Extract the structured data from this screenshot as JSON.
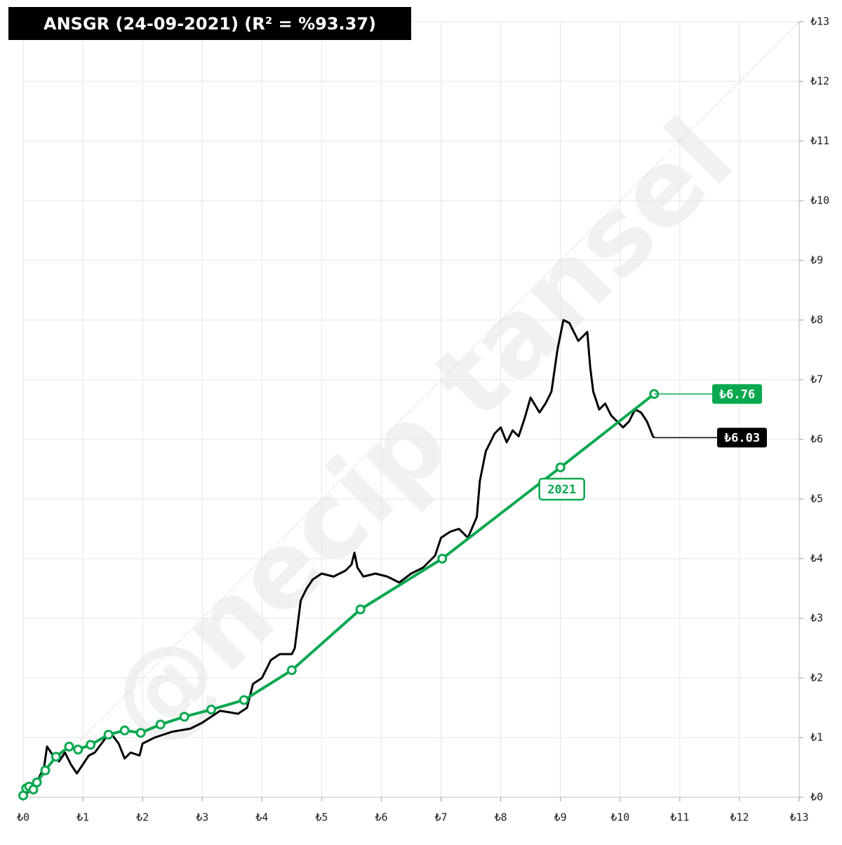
{
  "chart_data": {
    "type": "line",
    "title": "ANSGR (24-09-2021) (R² = %93.37)",
    "watermark": "@necip tansel",
    "xlim": [
      0,
      13
    ],
    "ylim": [
      0,
      13
    ],
    "xticks": [
      {
        "value": 0,
        "label": "₺0"
      },
      {
        "value": 1,
        "label": "₺1"
      },
      {
        "value": 2,
        "label": "₺2"
      },
      {
        "value": 3,
        "label": "₺3"
      },
      {
        "value": 4,
        "label": "₺4"
      },
      {
        "value": 5,
        "label": "₺5"
      },
      {
        "value": 6,
        "label": "₺6"
      },
      {
        "value": 7,
        "label": "₺7"
      },
      {
        "value": 8,
        "label": "₺8"
      },
      {
        "value": 9,
        "label": "₺9"
      },
      {
        "value": 10,
        "label": "₺10"
      },
      {
        "value": 11,
        "label": "₺11"
      },
      {
        "value": 12,
        "label": "₺12"
      },
      {
        "value": 13,
        "label": "₺13"
      }
    ],
    "yticks": [
      {
        "value": 0,
        "label": "₺0"
      },
      {
        "value": 1,
        "label": "₺1"
      },
      {
        "value": 2,
        "label": "₺2"
      },
      {
        "value": 3,
        "label": "₺3"
      },
      {
        "value": 4,
        "label": "₺4"
      },
      {
        "value": 5,
        "label": "₺5"
      },
      {
        "value": 6,
        "label": "₺6"
      },
      {
        "value": 7,
        "label": "₺7"
      },
      {
        "value": 8,
        "label": "₺8"
      },
      {
        "value": 9,
        "label": "₺9"
      },
      {
        "value": 10,
        "label": "₺10"
      },
      {
        "value": 11,
        "label": "₺11"
      },
      {
        "value": 12,
        "label": "₺12"
      },
      {
        "value": 13,
        "label": "₺13"
      }
    ],
    "grid": true,
    "diagonal": true,
    "series": [
      {
        "color": "#000000",
        "markers": false,
        "x": [
          0,
          0.2,
          0.35,
          0.4,
          0.5,
          0.6,
          0.7,
          0.8,
          0.9,
          1.0,
          1.1,
          1.2,
          1.35,
          1.45,
          1.6,
          1.7,
          1.8,
          1.95,
          2.0,
          2.2,
          2.5,
          2.8,
          3.0,
          3.3,
          3.6,
          3.75,
          3.85,
          4.0,
          4.15,
          4.3,
          4.5,
          4.55,
          4.65,
          4.75,
          4.85,
          5.0,
          5.2,
          5.4,
          5.5,
          5.55,
          5.6,
          5.7,
          5.9,
          6.1,
          6.3,
          6.5,
          6.7,
          6.9,
          7.0,
          7.15,
          7.3,
          7.45,
          7.6,
          7.65,
          7.75,
          7.9,
          8.0,
          8.1,
          8.2,
          8.3,
          8.4,
          8.5,
          8.65,
          8.75,
          8.85,
          8.95,
          9.05,
          9.15,
          9.3,
          9.45,
          9.5,
          9.55,
          9.65,
          9.75,
          9.85,
          9.95,
          10.05,
          10.15,
          10.25,
          10.35,
          10.45,
          10.55,
          10.57
        ],
        "values": [
          0,
          0.2,
          0.5,
          0.85,
          0.7,
          0.6,
          0.75,
          0.55,
          0.4,
          0.55,
          0.7,
          0.75,
          0.95,
          1.1,
          0.9,
          0.65,
          0.75,
          0.7,
          0.9,
          1.0,
          1.1,
          1.15,
          1.25,
          1.45,
          1.4,
          1.5,
          1.9,
          2.0,
          2.3,
          2.4,
          2.4,
          2.5,
          3.3,
          3.5,
          3.65,
          3.75,
          3.7,
          3.8,
          3.9,
          4.1,
          3.85,
          3.7,
          3.75,
          3.7,
          3.6,
          3.75,
          3.85,
          4.05,
          4.35,
          4.45,
          4.5,
          4.35,
          4.7,
          5.3,
          5.8,
          6.1,
          6.2,
          5.95,
          6.15,
          6.05,
          6.35,
          6.7,
          6.45,
          6.6,
          6.8,
          7.5,
          8.0,
          7.95,
          7.65,
          7.8,
          7.2,
          6.8,
          6.5,
          6.6,
          6.4,
          6.3,
          6.2,
          6.3,
          6.5,
          6.45,
          6.3,
          6.05,
          6.03
        ],
        "value_labels": [
          null,
          null,
          null,
          null,
          null,
          null,
          null,
          null,
          null,
          null,
          null,
          null,
          null,
          null,
          null,
          null,
          null,
          null,
          null,
          null,
          null,
          null,
          null,
          null,
          null,
          null,
          null,
          null,
          null,
          null,
          null,
          null,
          null,
          null,
          null,
          null,
          null,
          null,
          null,
          null,
          null,
          null,
          null,
          null,
          null,
          null,
          null,
          null,
          null,
          null,
          null,
          null,
          null,
          null,
          null,
          null,
          null,
          null,
          null,
          null,
          null,
          null,
          null,
          null,
          null,
          null,
          null,
          null,
          null,
          null,
          null,
          null,
          null,
          null,
          null,
          null,
          null,
          null,
          null,
          null,
          null,
          null,
          "₺6.03"
        ]
      },
      {
        "color": "#0aa84f",
        "markers": true,
        "x": [
          0,
          0.05,
          0.1,
          0.17,
          0.23,
          0.37,
          0.55,
          0.77,
          0.92,
          1.13,
          1.43,
          1.7,
          1.97,
          2.3,
          2.7,
          3.15,
          3.7,
          4.5,
          5.65,
          7.02,
          9.0,
          10.57
        ],
        "values": [
          0.03,
          0.15,
          0.18,
          0.13,
          0.25,
          0.45,
          0.68,
          0.85,
          0.8,
          0.88,
          1.05,
          1.12,
          1.08,
          1.22,
          1.35,
          1.47,
          1.63,
          2.13,
          3.15,
          4.0,
          5.53,
          6.76
        ],
        "value_labels": [
          null,
          null,
          null,
          null,
          null,
          null,
          null,
          null,
          null,
          null,
          null,
          null,
          null,
          null,
          null,
          null,
          null,
          null,
          null,
          null,
          null,
          "₺6.76"
        ],
        "point_labels": [
          null,
          null,
          null,
          null,
          null,
          null,
          null,
          null,
          null,
          null,
          null,
          null,
          null,
          null,
          null,
          null,
          null,
          null,
          null,
          null,
          "2021",
          null
        ]
      }
    ]
  }
}
